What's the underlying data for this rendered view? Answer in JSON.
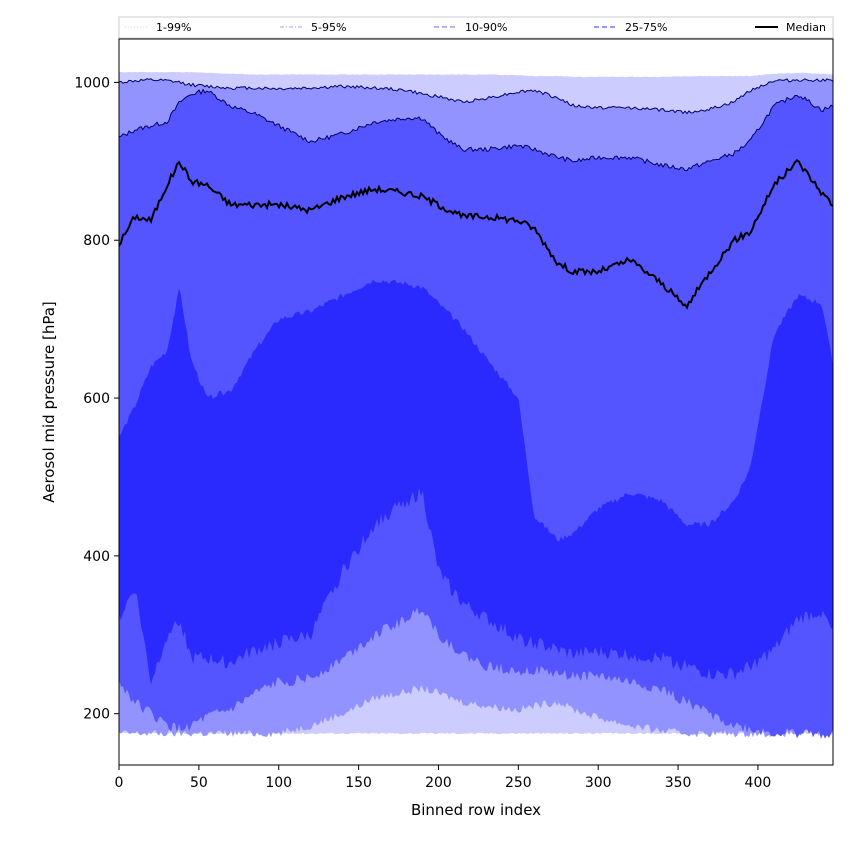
{
  "chart_data": {
    "type": "area",
    "title": "",
    "xlabel": "Binned row index",
    "ylabel": "Aerosol mid pressure [hPa]",
    "xlim": [
      0,
      447
    ],
    "ylim": [
      135,
      1055
    ],
    "x_ticks": [
      0,
      50,
      100,
      150,
      200,
      250,
      300,
      350,
      400
    ],
    "y_ticks": [
      200,
      400,
      600,
      800,
      1000
    ],
    "grid": false,
    "legend_position": "top",
    "colors": {
      "band_1_99": "#ccccff",
      "band_5_95": "#9393ff",
      "band_10_90": "#5555ff",
      "band_25_75": "#2a2aff",
      "median": "#000000",
      "frame": "#000000"
    },
    "legend": [
      {
        "label": "1-99%",
        "style": "dotted",
        "color": "#dcdcff"
      },
      {
        "label": "5-95%",
        "style": "dash-dot",
        "color": "#b5b5ff"
      },
      {
        "label": "10-90%",
        "style": "dashed",
        "color": "#8888ff"
      },
      {
        "label": "25-75%",
        "style": "dashed",
        "color": "#5a5aff"
      },
      {
        "label": "Median",
        "style": "solid",
        "color": "#000000"
      }
    ],
    "x": [
      0,
      10,
      20,
      30,
      38,
      45,
      55,
      70,
      85,
      100,
      120,
      140,
      160,
      180,
      190,
      200,
      215,
      230,
      250,
      260,
      275,
      285,
      300,
      320,
      340,
      355,
      370,
      385,
      395,
      410,
      425,
      440,
      447
    ],
    "series": [
      {
        "name": "1%",
        "values": [
          175,
          175,
          175,
          175,
          175,
          175,
          175,
          175,
          175,
          175,
          175,
          175,
          175,
          175,
          175,
          175,
          175,
          175,
          175,
          175,
          175,
          175,
          175,
          175,
          175,
          175,
          175,
          175,
          175,
          175,
          175,
          175,
          175
        ]
      },
      {
        "name": "5%",
        "values": [
          175,
          175,
          175,
          175,
          175,
          175,
          175,
          175,
          175,
          175,
          185,
          200,
          220,
          228,
          232,
          226,
          215,
          210,
          205,
          210,
          215,
          205,
          195,
          185,
          178,
          175,
          175,
          175,
          175,
          175,
          175,
          175,
          175
        ]
      },
      {
        "name": "10%",
        "values": [
          240,
          215,
          200,
          185,
          180,
          185,
          195,
          205,
          225,
          240,
          245,
          270,
          300,
          320,
          335,
          300,
          275,
          260,
          255,
          255,
          250,
          248,
          248,
          240,
          230,
          215,
          200,
          185,
          180,
          175,
          175,
          175,
          175
        ]
      },
      {
        "name": "25%",
        "values": [
          320,
          360,
          240,
          300,
          320,
          270,
          270,
          265,
          280,
          290,
          300,
          380,
          440,
          470,
          480,
          380,
          340,
          320,
          295,
          290,
          280,
          275,
          278,
          275,
          270,
          260,
          250,
          250,
          260,
          280,
          320,
          330,
          300
        ]
      },
      {
        "name": "Median",
        "values": [
          795,
          830,
          825,
          870,
          900,
          875,
          870,
          845,
          845,
          845,
          838,
          855,
          865,
          860,
          855,
          845,
          830,
          830,
          825,
          815,
          770,
          760,
          760,
          775,
          745,
          715,
          760,
          800,
          810,
          870,
          900,
          860,
          845
        ]
      },
      {
        "name": "75%",
        "values": [
          550,
          590,
          640,
          660,
          740,
          650,
          600,
          610,
          660,
          700,
          710,
          730,
          750,
          745,
          740,
          720,
          690,
          650,
          600,
          450,
          420,
          430,
          460,
          480,
          470,
          440,
          440,
          470,
          510,
          680,
          730,
          720,
          640
        ]
      },
      {
        "name": "90%",
        "values": [
          930,
          940,
          945,
          950,
          975,
          985,
          990,
          970,
          960,
          945,
          925,
          935,
          950,
          955,
          955,
          935,
          915,
          915,
          920,
          915,
          905,
          900,
          905,
          905,
          895,
          890,
          900,
          910,
          925,
          970,
          985,
          965,
          970
        ]
      },
      {
        "name": "95%",
        "values": [
          1000,
          1002,
          1003,
          1002,
          1000,
          997,
          995,
          993,
          993,
          992,
          993,
          995,
          993,
          990,
          985,
          982,
          975,
          980,
          988,
          990,
          980,
          970,
          968,
          968,
          965,
          962,
          966,
          975,
          990,
          1002,
          1003,
          1003,
          1002
        ]
      },
      {
        "name": "99%",
        "values": [
          1013,
          1013,
          1013,
          1013,
          1013,
          1013,
          1012,
          1011,
          1010,
          1010,
          1010,
          1010,
          1010,
          1010,
          1010,
          1010,
          1010,
          1010,
          1009,
          1008,
          1008,
          1007,
          1007,
          1007,
          1007,
          1008,
          1008,
          1008,
          1008,
          1011,
          1012,
          1011,
          1010
        ]
      }
    ]
  }
}
